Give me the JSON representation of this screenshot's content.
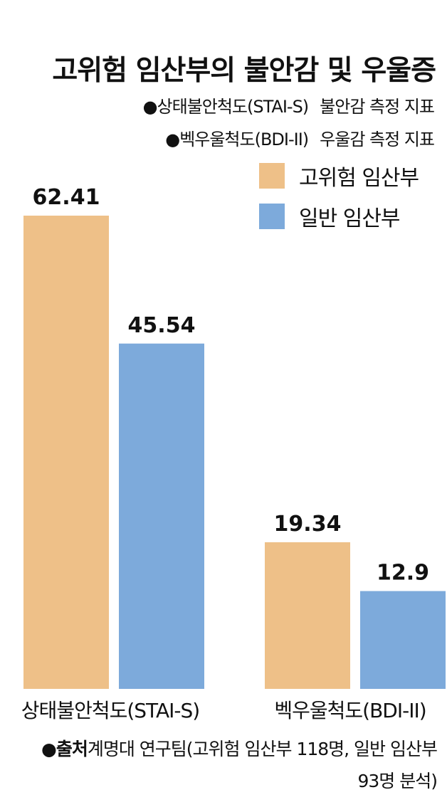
{
  "title": "고위험 임산부의 불안감 및 우울증",
  "notes": [
    {
      "term": "●상태불안척도(STAI-S)",
      "desc": "불안감 측정 지표"
    },
    {
      "term": "●벡우울척도(BDI-II)",
      "desc": "우울감 측정 지표"
    }
  ],
  "source": {
    "label": "●출처",
    "text": "계명대 연구팀(고위험 임산부 118명, 일반 임산부 93명 분석)"
  },
  "colors": {
    "high_risk": "#EEC088",
    "general": "#7DAADB"
  },
  "chart_data": {
    "type": "bar",
    "title": "고위험 임산부의 불안감 및 우울증",
    "categories": [
      "상태불안척도(STAI-S)",
      "벡우울척도(BDI-II)"
    ],
    "series": [
      {
        "name": "고위험 임산부",
        "values": [
          62.41,
          19.34
        ],
        "labels": [
          "62.41",
          "19.34"
        ],
        "color": "#EEC088"
      },
      {
        "name": "일반 임산부",
        "values": [
          45.54,
          12.9
        ],
        "labels": [
          "45.54",
          "12.9"
        ],
        "color": "#7DAADB"
      }
    ],
    "ylim": [
      0,
      62.41
    ],
    "grid": false,
    "legend": "top-right"
  }
}
